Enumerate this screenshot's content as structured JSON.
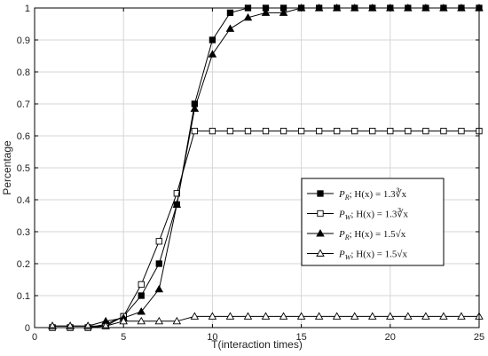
{
  "chart_data": {
    "type": "line",
    "xlabel": "T(interaction times)",
    "ylabel": "Percentage",
    "xlim": [
      0,
      25
    ],
    "ylim": [
      0,
      1
    ],
    "xticks": [
      0,
      5,
      10,
      15,
      20,
      25
    ],
    "yticks": [
      0,
      0.1,
      0.2,
      0.3,
      0.4,
      0.5,
      0.6,
      0.7,
      0.8,
      0.9,
      1
    ],
    "grid": true,
    "legend_position": "center-right",
    "series": [
      {
        "name": "P_R;  H(x) = 1.3∛x",
        "marker": "filled-square",
        "x": [
          1,
          2,
          3,
          4,
          5,
          6,
          7,
          8,
          9,
          10,
          11,
          12,
          13,
          14,
          15,
          16,
          17,
          18,
          19,
          20,
          21,
          22,
          23,
          24,
          25
        ],
        "y": [
          0,
          0,
          0,
          0.005,
          0.035,
          0.1,
          0.2,
          0.385,
          0.7,
          0.9,
          0.985,
          1,
          1,
          1,
          1,
          1,
          1,
          1,
          1,
          1,
          1,
          1,
          1,
          1,
          1
        ]
      },
      {
        "name": "P_W;  H(x) = 1.3∛x",
        "marker": "open-square",
        "x": [
          1,
          2,
          3,
          4,
          5,
          6,
          7,
          8,
          9,
          10,
          11,
          12,
          13,
          14,
          15,
          16,
          17,
          18,
          19,
          20,
          21,
          22,
          23,
          24,
          25
        ],
        "y": [
          0,
          0,
          0,
          0.01,
          0.035,
          0.135,
          0.27,
          0.42,
          0.615,
          0.615,
          0.615,
          0.615,
          0.615,
          0.615,
          0.615,
          0.615,
          0.615,
          0.615,
          0.615,
          0.615,
          0.615,
          0.615,
          0.615,
          0.615,
          0.615
        ]
      },
      {
        "name": "P_R;  H(x) = 1.5√x",
        "marker": "filled-triangle",
        "x": [
          1,
          2,
          3,
          4,
          5,
          6,
          7,
          8,
          9,
          10,
          11,
          12,
          13,
          14,
          15,
          16,
          17,
          18,
          19,
          20,
          21,
          22,
          23,
          24,
          25
        ],
        "y": [
          0.005,
          0.005,
          0.005,
          0.02,
          0.03,
          0.05,
          0.12,
          0.385,
          0.685,
          0.855,
          0.935,
          0.97,
          0.985,
          0.985,
          1,
          1,
          1,
          1,
          1,
          1,
          1,
          1,
          1,
          1,
          1
        ]
      },
      {
        "name": "P_W;  H(x) = 1.5√x",
        "marker": "open-triangle",
        "x": [
          1,
          2,
          3,
          4,
          5,
          6,
          7,
          8,
          9,
          10,
          11,
          12,
          13,
          14,
          15,
          16,
          17,
          18,
          19,
          20,
          21,
          22,
          23,
          24,
          25
        ],
        "y": [
          0.005,
          0.005,
          0.005,
          0.005,
          0.02,
          0.02,
          0.02,
          0.02,
          0.035,
          0.035,
          0.035,
          0.035,
          0.035,
          0.035,
          0.035,
          0.035,
          0.035,
          0.035,
          0.035,
          0.035,
          0.035,
          0.035,
          0.035,
          0.035,
          0.035
        ]
      }
    ]
  },
  "legend": {
    "items": [
      {
        "sub": "R",
        "func": "H(x) = 1.3∛x"
      },
      {
        "sub": "W",
        "func": "H(x) = 1.3∛x"
      },
      {
        "sub": "R",
        "func": "H(x) = 1.5√x"
      },
      {
        "sub": "W",
        "func": "H(x) = 1.5√x"
      }
    ],
    "symbol": "P"
  }
}
